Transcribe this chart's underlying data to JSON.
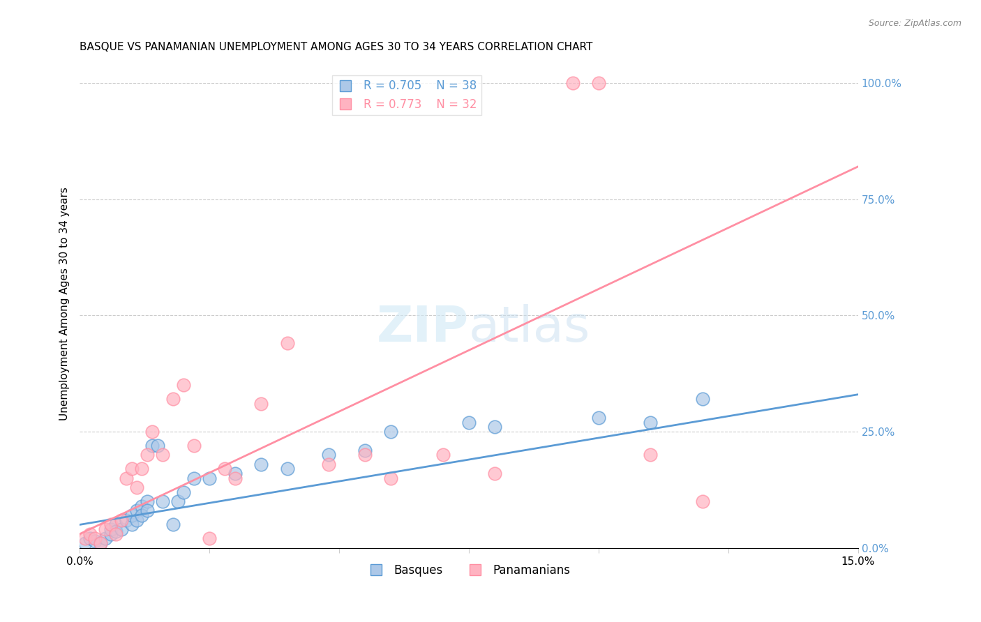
{
  "title": "BASQUE VS PANAMANIAN UNEMPLOYMENT AMONG AGES 30 TO 34 YEARS CORRELATION CHART",
  "source": "Source: ZipAtlas.com",
  "xlabel": "",
  "ylabel": "Unemployment Among Ages 30 to 34 years",
  "xlim": [
    0.0,
    0.15
  ],
  "ylim": [
    0.0,
    1.05
  ],
  "xticks": [
    0.0,
    0.025,
    0.05,
    0.075,
    0.1,
    0.125,
    0.15
  ],
  "xtick_labels": [
    "0.0%",
    "",
    "",
    "",
    "",
    "",
    "15.0%"
  ],
  "ytick_labels_right": [
    "0.0%",
    "25.0%",
    "50.0%",
    "75.0%",
    "100.0%"
  ],
  "yticks_right": [
    0.0,
    0.25,
    0.5,
    0.75,
    1.0
  ],
  "blue_color": "#5b9bd5",
  "pink_color": "#ff8fa3",
  "blue_fill": "#adc8e8",
  "pink_fill": "#ffb3c1",
  "legend_R_blue": "R = 0.705",
  "legend_N_blue": "N = 38",
  "legend_R_pink": "R = 0.773",
  "legend_N_pink": "N = 32",
  "watermark": "ZIPatlas",
  "basque_x": [
    0.001,
    0.002,
    0.003,
    0.004,
    0.005,
    0.006,
    0.006,
    0.007,
    0.007,
    0.008,
    0.009,
    0.01,
    0.01,
    0.011,
    0.011,
    0.012,
    0.012,
    0.013,
    0.013,
    0.014,
    0.015,
    0.016,
    0.018,
    0.019,
    0.02,
    0.022,
    0.025,
    0.03,
    0.035,
    0.04,
    0.048,
    0.055,
    0.06,
    0.075,
    0.08,
    0.1,
    0.11,
    0.12
  ],
  "basque_y": [
    0.01,
    0.02,
    0.015,
    0.01,
    0.02,
    0.03,
    0.04,
    0.05,
    0.035,
    0.04,
    0.06,
    0.05,
    0.07,
    0.08,
    0.06,
    0.09,
    0.07,
    0.1,
    0.08,
    0.22,
    0.22,
    0.1,
    0.05,
    0.1,
    0.12,
    0.15,
    0.15,
    0.16,
    0.18,
    0.17,
    0.2,
    0.21,
    0.25,
    0.27,
    0.26,
    0.28,
    0.27,
    0.32
  ],
  "panama_x": [
    0.001,
    0.002,
    0.003,
    0.004,
    0.005,
    0.006,
    0.007,
    0.008,
    0.009,
    0.01,
    0.011,
    0.012,
    0.013,
    0.014,
    0.016,
    0.018,
    0.02,
    0.022,
    0.025,
    0.028,
    0.03,
    0.035,
    0.04,
    0.048,
    0.055,
    0.06,
    0.07,
    0.08,
    0.095,
    0.1,
    0.11,
    0.12
  ],
  "panama_y": [
    0.02,
    0.03,
    0.02,
    0.01,
    0.04,
    0.05,
    0.03,
    0.06,
    0.15,
    0.17,
    0.13,
    0.17,
    0.2,
    0.25,
    0.2,
    0.32,
    0.35,
    0.22,
    0.02,
    0.17,
    0.15,
    0.31,
    0.44,
    0.18,
    0.2,
    0.15,
    0.2,
    0.16,
    1.0,
    1.0,
    0.2,
    0.1
  ],
  "blue_line_x": [
    0.0,
    0.15
  ],
  "blue_line_y": [
    0.05,
    0.33
  ],
  "pink_line_x": [
    0.0,
    0.15
  ],
  "pink_line_y": [
    0.03,
    0.82
  ]
}
